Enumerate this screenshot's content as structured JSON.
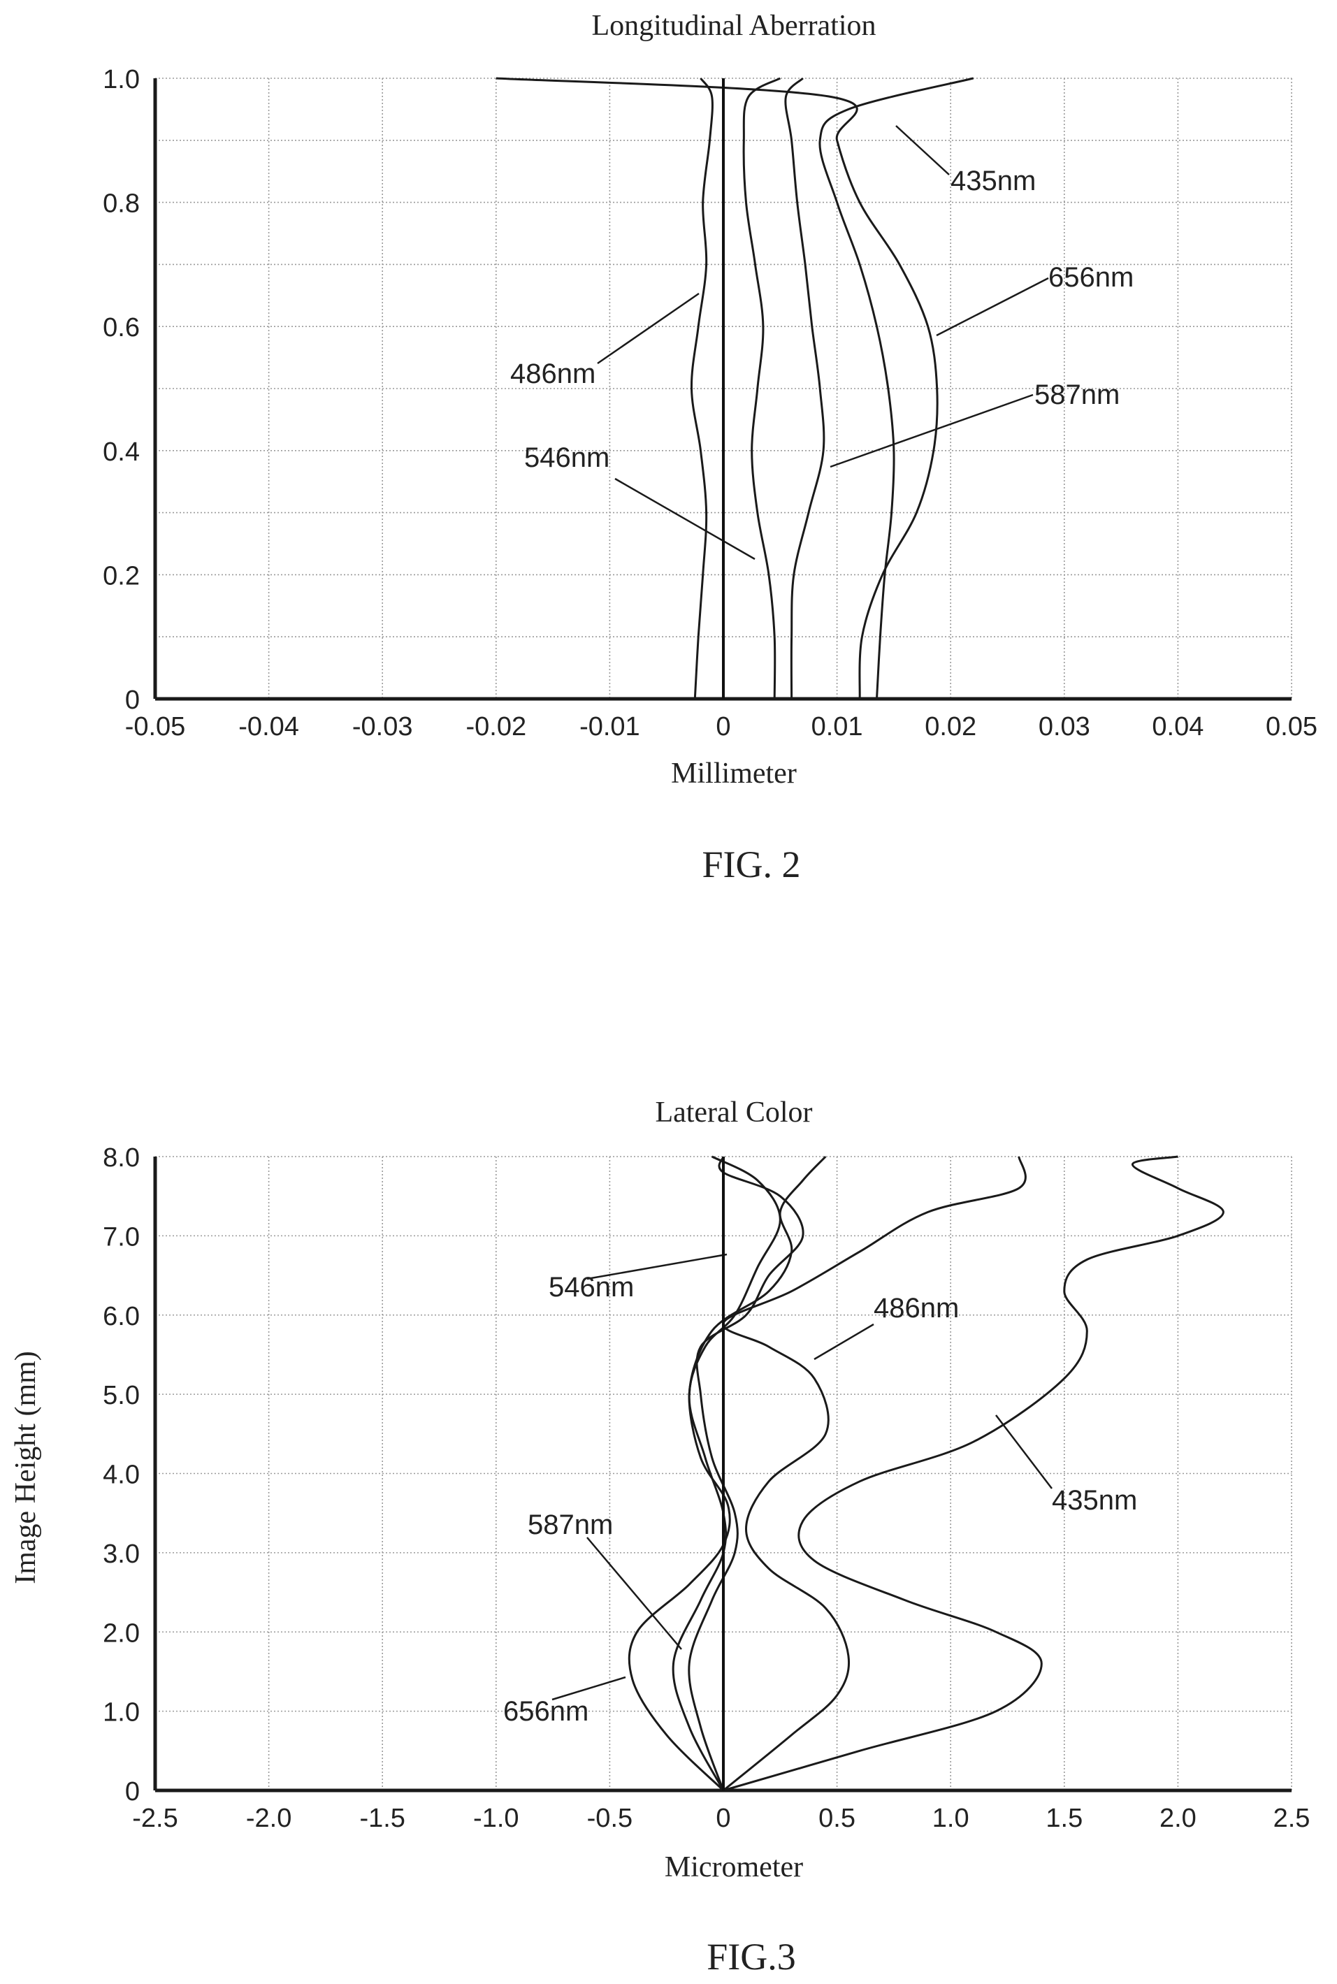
{
  "figures": [
    {
      "label": "FIG. 2"
    },
    {
      "label": "FIG.3"
    }
  ],
  "chart_data": [
    {
      "type": "line",
      "title": "Longitudinal Aberration",
      "xlabel": "Millimeter",
      "ylabel": "",
      "xlim": [
        -0.05,
        0.05
      ],
      "ylim": [
        0,
        1.0
      ],
      "xticks": [
        "-0.05",
        "-0.04",
        "-0.03",
        "-0.02",
        "-0.01",
        "0",
        "0.01",
        "0.02",
        "0.03",
        "0.04",
        "0.05"
      ],
      "yticks": [
        "0",
        "0.2",
        "0.4",
        "0.6",
        "0.8",
        "1.0"
      ],
      "grid": true,
      "series": [
        {
          "name": "435nm",
          "points": [
            [
              0.0135,
              0
            ],
            [
              0.0138,
              0.1
            ],
            [
              0.0142,
              0.2
            ],
            [
              0.0148,
              0.3
            ],
            [
              0.015,
              0.4
            ],
            [
              0.0145,
              0.5
            ],
            [
              0.0135,
              0.6
            ],
            [
              0.012,
              0.7
            ],
            [
              0.01,
              0.8
            ],
            [
              0.0085,
              0.9
            ],
            [
              0.011,
              0.95
            ],
            [
              0.022,
              1.0
            ]
          ]
        },
        {
          "name": "486nm",
          "points": [
            [
              -0.0025,
              0
            ],
            [
              -0.0022,
              0.1
            ],
            [
              -0.0018,
              0.2
            ],
            [
              -0.0015,
              0.3
            ],
            [
              -0.002,
              0.4
            ],
            [
              -0.0028,
              0.5
            ],
            [
              -0.0022,
              0.6
            ],
            [
              -0.0015,
              0.7
            ],
            [
              -0.0018,
              0.8
            ],
            [
              -0.0012,
              0.9
            ],
            [
              -0.001,
              0.97
            ],
            [
              -0.002,
              1.0
            ]
          ]
        },
        {
          "name": "546nm",
          "points": [
            [
              0.0045,
              0
            ],
            [
              0.0045,
              0.1
            ],
            [
              0.004,
              0.2
            ],
            [
              0.003,
              0.3
            ],
            [
              0.0025,
              0.4
            ],
            [
              0.003,
              0.5
            ],
            [
              0.0035,
              0.6
            ],
            [
              0.0028,
              0.7
            ],
            [
              0.002,
              0.8
            ],
            [
              0.0018,
              0.9
            ],
            [
              0.0022,
              0.97
            ],
            [
              0.005,
              1.0
            ]
          ]
        },
        {
          "name": "587nm",
          "points": [
            [
              0.006,
              0
            ],
            [
              0.006,
              0.1
            ],
            [
              0.0062,
              0.2
            ],
            [
              0.0075,
              0.3
            ],
            [
              0.0088,
              0.4
            ],
            [
              0.0085,
              0.5
            ],
            [
              0.0078,
              0.6
            ],
            [
              0.0072,
              0.7
            ],
            [
              0.0065,
              0.8
            ],
            [
              0.006,
              0.9
            ],
            [
              0.0055,
              0.97
            ],
            [
              0.007,
              1.0
            ]
          ]
        },
        {
          "name": "656nm",
          "points": [
            [
              0.012,
              0
            ],
            [
              0.0122,
              0.1
            ],
            [
              0.014,
              0.2
            ],
            [
              0.017,
              0.3
            ],
            [
              0.0185,
              0.4
            ],
            [
              0.0188,
              0.5
            ],
            [
              0.018,
              0.6
            ],
            [
              0.0155,
              0.7
            ],
            [
              0.012,
              0.8
            ],
            [
              0.01,
              0.9
            ],
            [
              0.0095,
              0.97
            ],
            [
              -0.02,
              1.0
            ]
          ]
        }
      ],
      "annotations": [
        {
          "text": "435nm"
        },
        {
          "text": "656nm"
        },
        {
          "text": "486nm"
        },
        {
          "text": "587nm"
        },
        {
          "text": "546nm"
        }
      ]
    },
    {
      "type": "line",
      "title": "Lateral Color",
      "xlabel": "Micrometer",
      "ylabel": "Image Height (mm)",
      "xlim": [
        -2.5,
        2.5
      ],
      "ylim": [
        0,
        8.0
      ],
      "xticks": [
        "-2.5",
        "-2.0",
        "-1.5",
        "-1.0",
        "-0.5",
        "0",
        "0.5",
        "1.0",
        "1.5",
        "2.0",
        "2.5"
      ],
      "yticks": [
        "0",
        "1.0",
        "2.0",
        "3.0",
        "4.0",
        "5.0",
        "6.0",
        "7.0",
        "8.0"
      ],
      "grid": true,
      "series": [
        {
          "name": "435nm",
          "points": [
            [
              0,
              0
            ],
            [
              0.6,
              0.5
            ],
            [
              1.2,
              1.0
            ],
            [
              1.4,
              1.6
            ],
            [
              1.2,
              2.0
            ],
            [
              0.8,
              2.4
            ],
            [
              0.4,
              2.9
            ],
            [
              0.35,
              3.4
            ],
            [
              0.6,
              3.9
            ],
            [
              1.1,
              4.4
            ],
            [
              1.5,
              5.2
            ],
            [
              1.6,
              5.8
            ],
            [
              1.5,
              6.3
            ],
            [
              1.6,
              6.7
            ],
            [
              2.0,
              7.0
            ],
            [
              2.2,
              7.3
            ],
            [
              2.0,
              7.6
            ],
            [
              1.8,
              7.9
            ],
            [
              2.0,
              8.0
            ]
          ]
        },
        {
          "name": "486nm",
          "points": [
            [
              0,
              0
            ],
            [
              0.3,
              0.7
            ],
            [
              0.5,
              1.2
            ],
            [
              0.55,
              1.7
            ],
            [
              0.45,
              2.3
            ],
            [
              0.2,
              2.8
            ],
            [
              0.1,
              3.3
            ],
            [
              0.2,
              3.9
            ],
            [
              0.45,
              4.5
            ],
            [
              0.4,
              5.2
            ],
            [
              0.2,
              5.6
            ],
            [
              0.0,
              5.9
            ],
            [
              0.3,
              6.3
            ],
            [
              0.6,
              6.8
            ],
            [
              0.9,
              7.3
            ],
            [
              1.3,
              7.6
            ],
            [
              1.3,
              8.0
            ]
          ]
        },
        {
          "name": "546nm",
          "points": [
            [
              0,
              0
            ],
            [
              -0.1,
              0.8
            ],
            [
              -0.15,
              1.6
            ],
            [
              -0.05,
              2.4
            ],
            [
              0.05,
              3.0
            ],
            [
              0.05,
              3.5
            ],
            [
              -0.05,
              4.2
            ],
            [
              -0.1,
              5.0
            ],
            [
              -0.1,
              5.6
            ],
            [
              0.1,
              6.0
            ],
            [
              0.2,
              6.5
            ],
            [
              0.35,
              7.0
            ],
            [
              0.25,
              7.5
            ],
            [
              0.0,
              7.8
            ],
            [
              0.0,
              8.0
            ]
          ]
        },
        {
          "name": "587nm",
          "points": [
            [
              0,
              0
            ],
            [
              -0.15,
              0.8
            ],
            [
              -0.22,
              1.6
            ],
            [
              -0.1,
              2.4
            ],
            [
              0.0,
              3.0
            ],
            [
              0.0,
              3.5
            ],
            [
              -0.08,
              4.2
            ],
            [
              -0.15,
              5.0
            ],
            [
              -0.05,
              5.8
            ],
            [
              0.2,
              6.3
            ],
            [
              0.3,
              6.8
            ],
            [
              0.25,
              7.3
            ],
            [
              0.35,
              7.7
            ],
            [
              0.45,
              8.0
            ]
          ]
        },
        {
          "name": "656nm",
          "points": [
            [
              0,
              0
            ],
            [
              -0.25,
              0.7
            ],
            [
              -0.4,
              1.4
            ],
            [
              -0.38,
              2.0
            ],
            [
              -0.15,
              2.6
            ],
            [
              0.0,
              3.1
            ],
            [
              0.02,
              3.6
            ],
            [
              -0.1,
              4.2
            ],
            [
              -0.15,
              5.0
            ],
            [
              -0.08,
              5.6
            ],
            [
              0.05,
              6.0
            ],
            [
              0.15,
              6.6
            ],
            [
              0.25,
              7.2
            ],
            [
              0.15,
              7.7
            ],
            [
              -0.05,
              8.0
            ]
          ]
        }
      ],
      "annotations": [
        {
          "text": "546nm"
        },
        {
          "text": "486nm"
        },
        {
          "text": "435nm"
        },
        {
          "text": "587nm"
        },
        {
          "text": "656nm"
        }
      ]
    }
  ]
}
